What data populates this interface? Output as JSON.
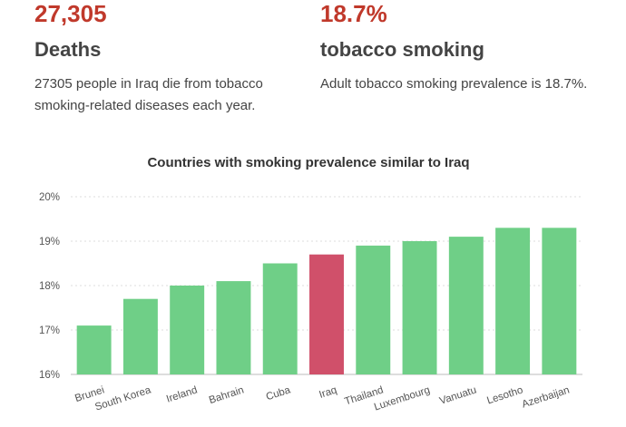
{
  "stats": [
    {
      "value": "27,305",
      "label": "Deaths",
      "description": "27305 people in Iraq die from tobacco smoking-related diseases each year."
    },
    {
      "value": "18.7%",
      "label": "tobacco smoking",
      "description": "Adult tobacco smoking prevalence is 18.7%."
    }
  ],
  "chart_data": {
    "type": "bar",
    "title": "Countries with smoking prevalence similar to Iraq",
    "xlabel": "",
    "ylabel": "",
    "categories": [
      "Brunei",
      "South Korea",
      "Ireland",
      "Bahrain",
      "Cuba",
      "Iraq",
      "Thailand",
      "Luxembourg",
      "Vanuatu",
      "Lesotho",
      "Azerbaijan"
    ],
    "values": [
      17.1,
      17.7,
      18.0,
      18.1,
      18.5,
      18.7,
      18.9,
      19.0,
      19.1,
      19.3,
      19.3
    ],
    "ylim": [
      16,
      20
    ],
    "yticks": [
      "16%",
      "17%",
      "18%",
      "19%",
      "20%"
    ],
    "ytick_values": [
      16,
      17,
      18,
      19,
      20
    ],
    "highlight": "Iraq",
    "colors": {
      "bar": "#6fcf87",
      "highlight": "#d0506a",
      "grid": "#dddddd"
    },
    "grid": true,
    "legend": "none"
  }
}
